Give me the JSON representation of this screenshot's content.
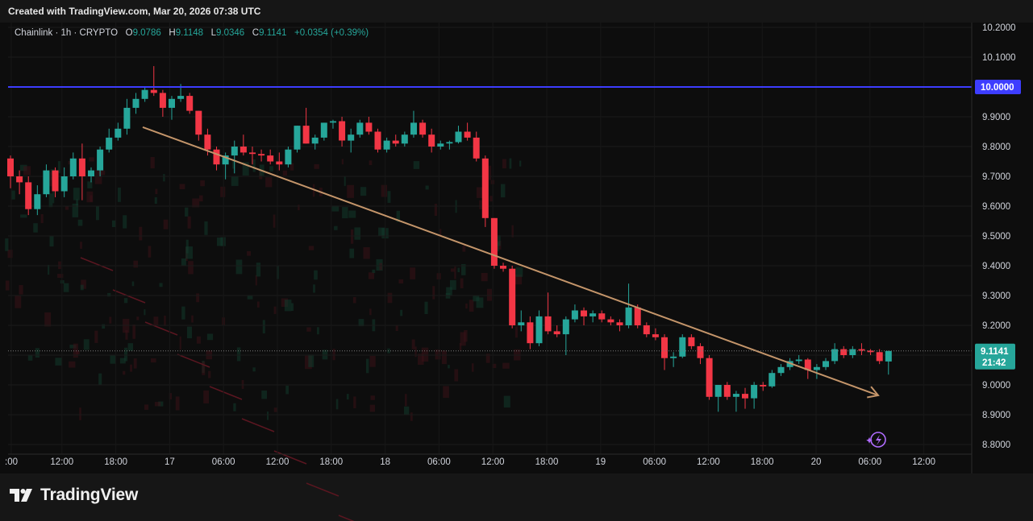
{
  "header": {
    "created_text": "Created with TradingView.com, Mar 20, 2026 07:38 UTC"
  },
  "legend": {
    "symbol": "Chainlink · 1h · CRYPTO",
    "o_label": "O",
    "o_value": "9.0786",
    "h_label": "H",
    "h_value": "9.1148",
    "l_label": "L",
    "l_value": "9.0346",
    "c_label": "C",
    "c_value": "9.1141",
    "change": "+0.0354 (+0.39%)"
  },
  "brand": {
    "logo_text": "TradingView"
  },
  "colors": {
    "up": "#26a69a",
    "down": "#f23645",
    "hline": "#3d3dff",
    "trend": "#c4956a",
    "price_label": "#26a69a"
  },
  "chart_data": {
    "type": "candlestick",
    "title": "Chainlink · 1h · CRYPTO",
    "y_ticks": [
      "10.2000",
      "10.1000",
      "10.0000",
      "9.9000",
      "9.8000",
      "9.7000",
      "9.6000",
      "9.5000",
      "9.4000",
      "9.3000",
      "9.2000",
      "9.1000",
      "9.0000",
      "8.9000",
      "8.8000"
    ],
    "ylim": [
      8.8,
      10.2
    ],
    "x_ticks": [
      ":00",
      "12:00",
      "18:00",
      "17",
      "06:00",
      "12:00",
      "18:00",
      "18",
      "06:00",
      "12:00",
      "18:00",
      "19",
      "06:00",
      "12:00",
      "18:00",
      "20",
      "06:00",
      "12:00"
    ],
    "horizontal_line": {
      "value": 10.0,
      "label": "10.0000"
    },
    "last_price": {
      "value": 9.1141,
      "label": "9.1141",
      "countdown": "21:42"
    },
    "trendline": {
      "from": {
        "time": "Mar 16 22:00",
        "price": 9.865
      },
      "to": {
        "time": "Mar 20 06:00",
        "price": 8.965
      }
    },
    "candles": [
      {
        "o": 9.76,
        "h": 9.77,
        "l": 9.66,
        "c": 9.7
      },
      {
        "o": 9.7,
        "h": 9.72,
        "l": 9.64,
        "c": 9.68
      },
      {
        "o": 9.68,
        "h": 9.7,
        "l": 9.57,
        "c": 9.59
      },
      {
        "o": 9.59,
        "h": 9.67,
        "l": 9.57,
        "c": 9.64
      },
      {
        "o": 9.64,
        "h": 9.74,
        "l": 9.63,
        "c": 9.72
      },
      {
        "o": 9.72,
        "h": 9.73,
        "l": 9.63,
        "c": 9.65
      },
      {
        "o": 9.65,
        "h": 9.73,
        "l": 9.63,
        "c": 9.7
      },
      {
        "o": 9.7,
        "h": 9.78,
        "l": 9.69,
        "c": 9.76
      },
      {
        "o": 9.76,
        "h": 9.81,
        "l": 9.62,
        "c": 9.7
      },
      {
        "o": 9.7,
        "h": 9.73,
        "l": 9.68,
        "c": 9.72
      },
      {
        "o": 9.72,
        "h": 9.8,
        "l": 9.7,
        "c": 9.79
      },
      {
        "o": 9.79,
        "h": 9.86,
        "l": 9.78,
        "c": 9.83
      },
      {
        "o": 9.83,
        "h": 9.88,
        "l": 9.82,
        "c": 9.86
      },
      {
        "o": 9.86,
        "h": 9.96,
        "l": 9.84,
        "c": 9.93
      },
      {
        "o": 9.93,
        "h": 9.98,
        "l": 9.91,
        "c": 9.96
      },
      {
        "o": 9.96,
        "h": 10.0,
        "l": 9.95,
        "c": 9.99
      },
      {
        "o": 9.99,
        "h": 10.07,
        "l": 9.97,
        "c": 9.98
      },
      {
        "o": 9.98,
        "h": 9.99,
        "l": 9.9,
        "c": 9.93
      },
      {
        "o": 9.93,
        "h": 9.97,
        "l": 9.89,
        "c": 9.96
      },
      {
        "o": 9.96,
        "h": 10.01,
        "l": 9.95,
        "c": 9.97
      },
      {
        "o": 9.97,
        "h": 9.98,
        "l": 9.91,
        "c": 9.92
      },
      {
        "o": 9.92,
        "h": 9.92,
        "l": 9.82,
        "c": 9.84
      },
      {
        "o": 9.84,
        "h": 9.86,
        "l": 9.77,
        "c": 9.79
      },
      {
        "o": 9.79,
        "h": 9.8,
        "l": 9.72,
        "c": 9.74
      },
      {
        "o": 9.74,
        "h": 9.78,
        "l": 9.69,
        "c": 9.77
      },
      {
        "o": 9.77,
        "h": 9.82,
        "l": 9.71,
        "c": 9.8
      },
      {
        "o": 9.8,
        "h": 9.84,
        "l": 9.77,
        "c": 9.78
      },
      {
        "o": 9.78,
        "h": 9.8,
        "l": 9.74,
        "c": 9.775
      },
      {
        "o": 9.775,
        "h": 9.79,
        "l": 9.75,
        "c": 9.77
      },
      {
        "o": 9.77,
        "h": 9.79,
        "l": 9.74,
        "c": 9.75
      },
      {
        "o": 9.75,
        "h": 9.78,
        "l": 9.72,
        "c": 9.74
      },
      {
        "o": 9.74,
        "h": 9.8,
        "l": 9.73,
        "c": 9.79
      },
      {
        "o": 9.79,
        "h": 9.87,
        "l": 9.78,
        "c": 9.87
      },
      {
        "o": 9.87,
        "h": 9.93,
        "l": 9.81,
        "c": 9.81
      },
      {
        "o": 9.81,
        "h": 9.84,
        "l": 9.79,
        "c": 9.83
      },
      {
        "o": 9.83,
        "h": 9.88,
        "l": 9.82,
        "c": 9.88
      },
      {
        "o": 9.88,
        "h": 9.89,
        "l": 9.86,
        "c": 9.885
      },
      {
        "o": 9.885,
        "h": 9.9,
        "l": 9.8,
        "c": 9.82
      },
      {
        "o": 9.82,
        "h": 9.86,
        "l": 9.78,
        "c": 9.84
      },
      {
        "o": 9.84,
        "h": 9.89,
        "l": 9.83,
        "c": 9.88
      },
      {
        "o": 9.88,
        "h": 9.9,
        "l": 9.84,
        "c": 9.85
      },
      {
        "o": 9.85,
        "h": 9.86,
        "l": 9.78,
        "c": 9.79
      },
      {
        "o": 9.79,
        "h": 9.83,
        "l": 9.78,
        "c": 9.82
      },
      {
        "o": 9.82,
        "h": 9.84,
        "l": 9.8,
        "c": 9.81
      },
      {
        "o": 9.81,
        "h": 9.85,
        "l": 9.8,
        "c": 9.84
      },
      {
        "o": 9.84,
        "h": 9.92,
        "l": 9.83,
        "c": 9.88
      },
      {
        "o": 9.88,
        "h": 9.89,
        "l": 9.83,
        "c": 9.84
      },
      {
        "o": 9.84,
        "h": 9.86,
        "l": 9.78,
        "c": 9.8
      },
      {
        "o": 9.8,
        "h": 9.82,
        "l": 9.79,
        "c": 9.81
      },
      {
        "o": 9.81,
        "h": 9.82,
        "l": 9.79,
        "c": 9.815
      },
      {
        "o": 9.815,
        "h": 9.87,
        "l": 9.81,
        "c": 9.85
      },
      {
        "o": 9.85,
        "h": 9.88,
        "l": 9.82,
        "c": 9.83
      },
      {
        "o": 9.83,
        "h": 9.85,
        "l": 9.75,
        "c": 9.76
      },
      {
        "o": 9.76,
        "h": 9.77,
        "l": 9.53,
        "c": 9.56
      },
      {
        "o": 9.56,
        "h": 9.56,
        "l": 9.39,
        "c": 9.4
      },
      {
        "o": 9.4,
        "h": 9.41,
        "l": 9.38,
        "c": 9.39
      },
      {
        "o": 9.39,
        "h": 9.4,
        "l": 9.19,
        "c": 9.2
      },
      {
        "o": 9.2,
        "h": 9.25,
        "l": 9.18,
        "c": 9.21
      },
      {
        "o": 9.21,
        "h": 9.23,
        "l": 9.12,
        "c": 9.14
      },
      {
        "o": 9.14,
        "h": 9.25,
        "l": 9.13,
        "c": 9.23
      },
      {
        "o": 9.23,
        "h": 9.31,
        "l": 9.17,
        "c": 9.18
      },
      {
        "o": 9.18,
        "h": 9.2,
        "l": 9.16,
        "c": 9.17
      },
      {
        "o": 9.17,
        "h": 9.23,
        "l": 9.1,
        "c": 9.22
      },
      {
        "o": 9.22,
        "h": 9.27,
        "l": 9.21,
        "c": 9.25
      },
      {
        "o": 9.25,
        "h": 9.26,
        "l": 9.2,
        "c": 9.23
      },
      {
        "o": 9.23,
        "h": 9.25,
        "l": 9.21,
        "c": 9.24
      },
      {
        "o": 9.24,
        "h": 9.25,
        "l": 9.21,
        "c": 9.22
      },
      {
        "o": 9.22,
        "h": 9.23,
        "l": 9.2,
        "c": 9.21
      },
      {
        "o": 9.21,
        "h": 9.22,
        "l": 9.18,
        "c": 9.2
      },
      {
        "o": 9.2,
        "h": 9.34,
        "l": 9.19,
        "c": 9.26
      },
      {
        "o": 9.26,
        "h": 9.27,
        "l": 9.19,
        "c": 9.2
      },
      {
        "o": 9.2,
        "h": 9.21,
        "l": 9.16,
        "c": 9.17
      },
      {
        "o": 9.17,
        "h": 9.19,
        "l": 9.15,
        "c": 9.16
      },
      {
        "o": 9.16,
        "h": 9.17,
        "l": 9.05,
        "c": 9.09
      },
      {
        "o": 9.09,
        "h": 9.11,
        "l": 9.06,
        "c": 9.095
      },
      {
        "o": 9.095,
        "h": 9.17,
        "l": 9.09,
        "c": 9.16
      },
      {
        "o": 9.16,
        "h": 9.17,
        "l": 9.12,
        "c": 9.13
      },
      {
        "o": 9.13,
        "h": 9.14,
        "l": 9.07,
        "c": 9.09
      },
      {
        "o": 9.09,
        "h": 9.1,
        "l": 8.95,
        "c": 8.96
      },
      {
        "o": 8.96,
        "h": 9.0,
        "l": 8.91,
        "c": 9.0
      },
      {
        "o": 9.0,
        "h": 9.01,
        "l": 8.95,
        "c": 8.96
      },
      {
        "o": 8.96,
        "h": 8.98,
        "l": 8.91,
        "c": 8.97
      },
      {
        "o": 8.97,
        "h": 8.99,
        "l": 8.92,
        "c": 8.955
      },
      {
        "o": 8.955,
        "h": 9.01,
        "l": 8.92,
        "c": 9.0
      },
      {
        "o": 9.0,
        "h": 9.01,
        "l": 8.98,
        "c": 8.995
      },
      {
        "o": 8.995,
        "h": 9.05,
        "l": 8.99,
        "c": 9.04
      },
      {
        "o": 9.04,
        "h": 9.07,
        "l": 9.03,
        "c": 9.06
      },
      {
        "o": 9.06,
        "h": 9.09,
        "l": 9.05,
        "c": 9.08
      },
      {
        "o": 9.08,
        "h": 9.1,
        "l": 9.07,
        "c": 9.085
      },
      {
        "o": 9.085,
        "h": 9.09,
        "l": 9.02,
        "c": 9.05
      },
      {
        "o": 9.05,
        "h": 9.07,
        "l": 9.02,
        "c": 9.06
      },
      {
        "o": 9.06,
        "h": 9.09,
        "l": 9.05,
        "c": 9.08
      },
      {
        "o": 9.08,
        "h": 9.14,
        "l": 9.07,
        "c": 9.12
      },
      {
        "o": 9.12,
        "h": 9.13,
        "l": 9.09,
        "c": 9.1
      },
      {
        "o": 9.1,
        "h": 9.13,
        "l": 9.09,
        "c": 9.12
      },
      {
        "o": 9.12,
        "h": 9.14,
        "l": 9.1,
        "c": 9.115
      },
      {
        "o": 9.115,
        "h": 9.12,
        "l": 9.1,
        "c": 9.11
      },
      {
        "o": 9.11,
        "h": 9.12,
        "l": 9.07,
        "c": 9.08
      },
      {
        "o": 9.0786,
        "h": 9.1148,
        "l": 9.0346,
        "c": 9.1141
      }
    ]
  }
}
